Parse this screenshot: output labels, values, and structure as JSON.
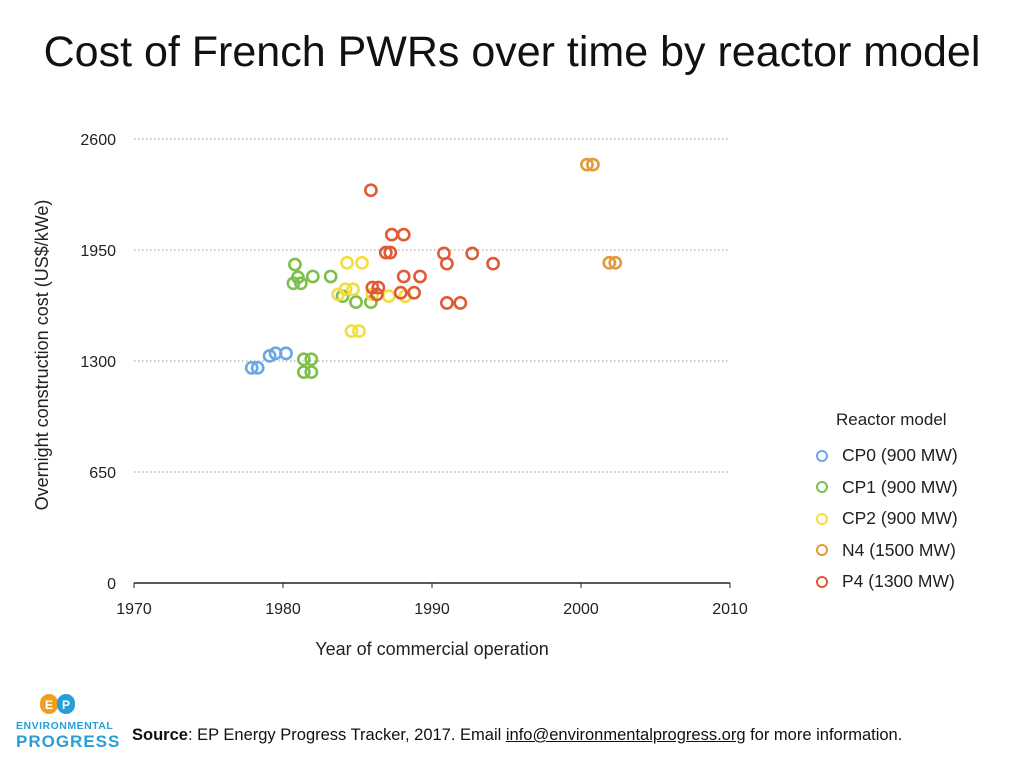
{
  "title": "Cost of French PWRs over time by reactor model",
  "footer": {
    "source_label": "Source",
    "source_text": ": EP Energy Progress Tracker, 2017. Email ",
    "email": "info@environmentalprogress.org",
    "suffix": " for more information."
  },
  "logo": {
    "monogram": "EP",
    "line1": "ENVIRONMENTAL",
    "line2": "PROGRESS"
  },
  "chart_data": {
    "type": "scatter",
    "title": "Cost of French PWRs over time by reactor model",
    "xlabel": "Year of commercial operation",
    "ylabel": "Overnight construction cost (US$/kWe)",
    "xlim": [
      1970,
      2010
    ],
    "ylim": [
      0,
      2600
    ],
    "xticks": [
      1970,
      1980,
      1990,
      2000,
      2010
    ],
    "yticks": [
      0,
      650,
      1300,
      1950,
      2600
    ],
    "grid": "horizontal-dotted",
    "legend_title": "Reactor model",
    "legend_position": "right",
    "series": [
      {
        "name": "CP0 (900 MW)",
        "color": "#6aa6e8",
        "points": [
          [
            1977.9,
            1260
          ],
          [
            1978.3,
            1260
          ],
          [
            1979.1,
            1330
          ],
          [
            1979.5,
            1345
          ],
          [
            1980.2,
            1345
          ]
        ]
      },
      {
        "name": "CP1 (900 MW)",
        "color": "#7cc04b",
        "points": [
          [
            1980.8,
            1865
          ],
          [
            1981.0,
            1790
          ],
          [
            1980.7,
            1755
          ],
          [
            1981.2,
            1755
          ],
          [
            1982.0,
            1795
          ],
          [
            1981.4,
            1310
          ],
          [
            1981.9,
            1310
          ],
          [
            1981.4,
            1235
          ],
          [
            1981.9,
            1235
          ],
          [
            1983.2,
            1795
          ],
          [
            1984.0,
            1680
          ],
          [
            1984.9,
            1645
          ],
          [
            1985.9,
            1645
          ]
        ]
      },
      {
        "name": "CP2 (900 MW)",
        "color": "#f3dd3f",
        "points": [
          [
            1984.3,
            1875
          ],
          [
            1985.3,
            1875
          ],
          [
            1984.2,
            1720
          ],
          [
            1984.7,
            1720
          ],
          [
            1983.7,
            1690
          ],
          [
            1986.0,
            1690
          ],
          [
            1987.1,
            1680
          ],
          [
            1988.2,
            1680
          ],
          [
            1984.6,
            1475
          ],
          [
            1985.1,
            1475
          ]
        ]
      },
      {
        "name": "N4 (1500 MW)",
        "color": "#e39a3a",
        "points": [
          [
            2000.4,
            2450
          ],
          [
            2000.8,
            2450
          ],
          [
            2001.9,
            1875
          ],
          [
            2002.3,
            1875
          ]
        ]
      },
      {
        "name": "P4 (1300 MW)",
        "color": "#e05a35",
        "points": [
          [
            1985.9,
            2300
          ],
          [
            1987.3,
            2040
          ],
          [
            1988.1,
            2040
          ],
          [
            1986.9,
            1935
          ],
          [
            1987.2,
            1935
          ],
          [
            1990.8,
            1930
          ],
          [
            1992.7,
            1930
          ],
          [
            1991.0,
            1870
          ],
          [
            1994.1,
            1870
          ],
          [
            1988.1,
            1795
          ],
          [
            1989.2,
            1795
          ],
          [
            1986.0,
            1730
          ],
          [
            1986.4,
            1730
          ],
          [
            1986.3,
            1690
          ],
          [
            1987.9,
            1700
          ],
          [
            1988.8,
            1700
          ],
          [
            1991.0,
            1640
          ],
          [
            1991.9,
            1640
          ]
        ]
      }
    ]
  }
}
